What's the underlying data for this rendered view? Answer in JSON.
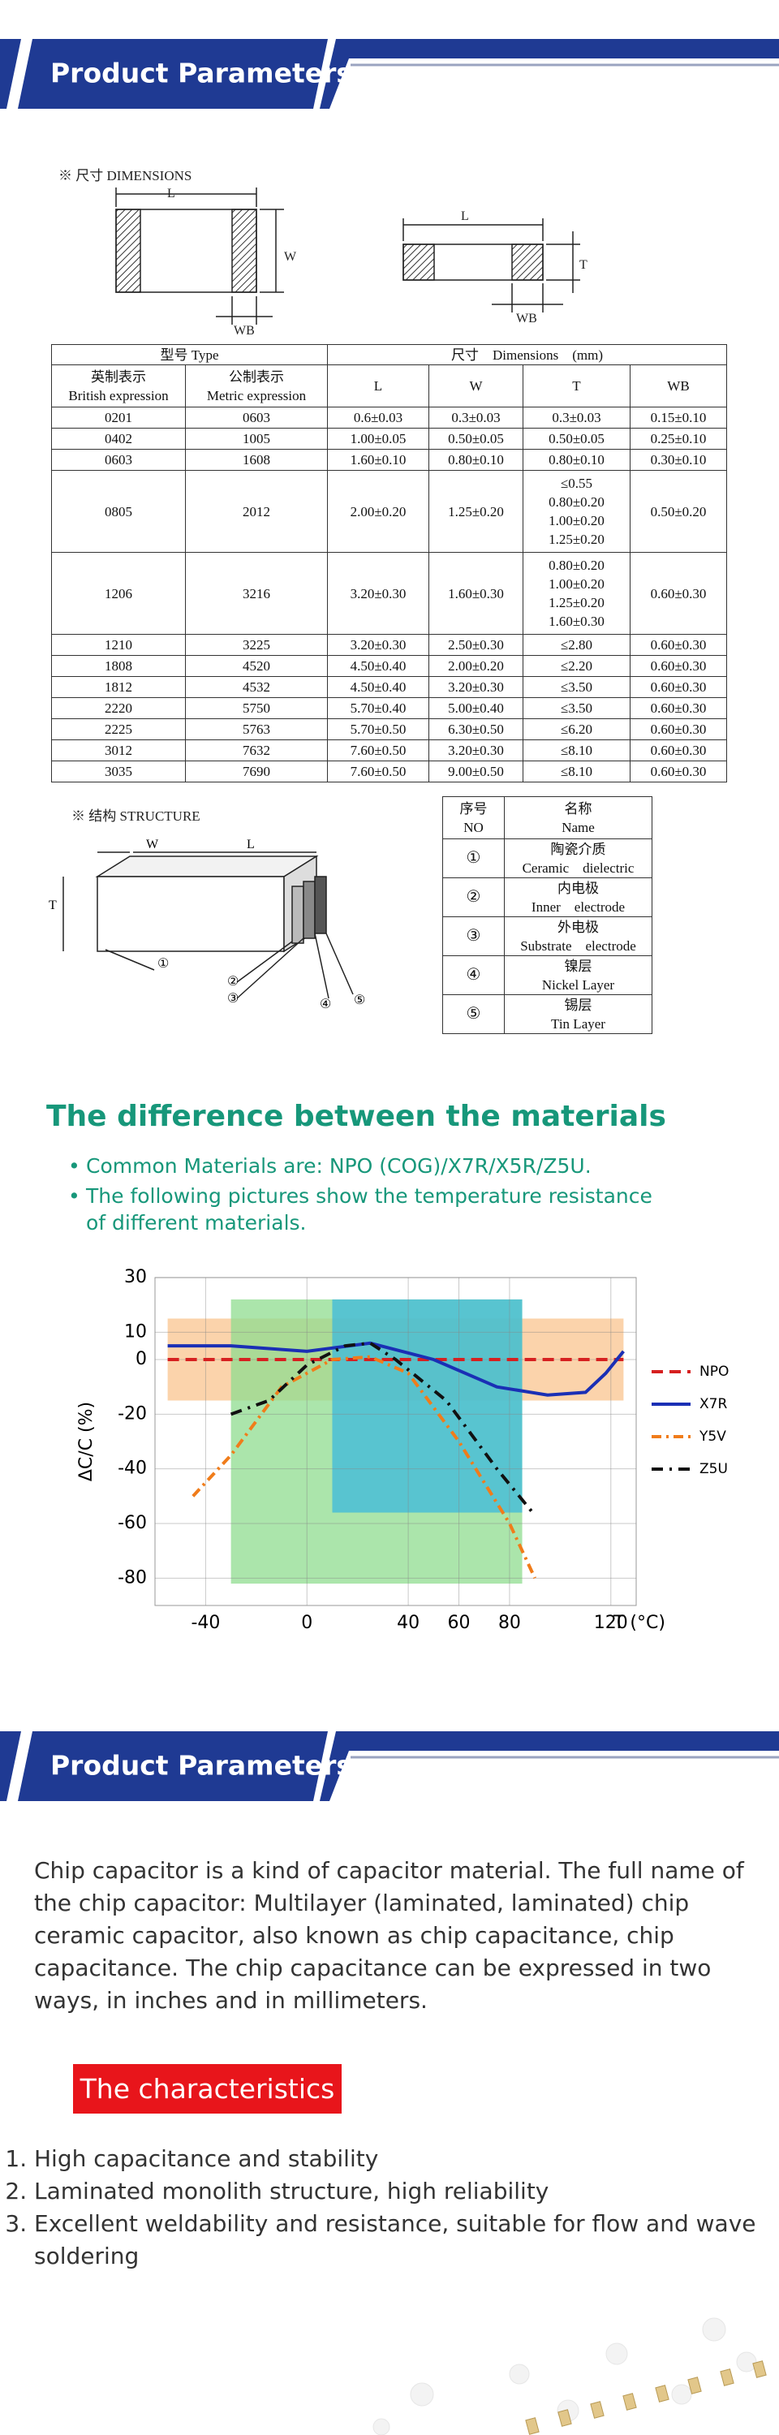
{
  "banner1": {
    "title": "Product Parameters"
  },
  "dimensions": {
    "heading": "※ 尺寸 DIMENSIONS",
    "fig1": {
      "L": "L",
      "W": "W",
      "WB": "WB"
    },
    "fig2": {
      "L": "L",
      "T": "T",
      "WB": "WB"
    }
  },
  "table": {
    "header": {
      "type": "型号 Type",
      "dims": "尺寸　Dimensions　(mm)",
      "british": [
        "英制表示",
        "British expression"
      ],
      "metric": [
        "公制表示",
        "Metric expression"
      ],
      "cols": [
        "L",
        "W",
        "T",
        "WB"
      ]
    },
    "rows": [
      [
        "0201",
        "0603",
        "0.6±0.03",
        "0.3±0.03",
        [
          "0.3±0.03"
        ],
        "0.15±0.10"
      ],
      [
        "0402",
        "1005",
        "1.00±0.05",
        "0.50±0.05",
        [
          "0.50±0.05"
        ],
        "0.25±0.10"
      ],
      [
        "0603",
        "1608",
        "1.60±0.10",
        "0.80±0.10",
        [
          "0.80±0.10"
        ],
        "0.30±0.10"
      ],
      [
        "0805",
        "2012",
        "2.00±0.20",
        "1.25±0.20",
        [
          "≤0.55",
          "0.80±0.20",
          "1.00±0.20",
          "1.25±0.20"
        ],
        "0.50±0.20"
      ],
      [
        "1206",
        "3216",
        "3.20±0.30",
        "1.60±0.30",
        [
          "0.80±0.20",
          "1.00±0.20",
          "1.25±0.20",
          "1.60±0.30"
        ],
        "0.60±0.30"
      ],
      [
        "1210",
        "3225",
        "3.20±0.30",
        "2.50±0.30",
        [
          "≤2.80"
        ],
        "0.60±0.30"
      ],
      [
        "1808",
        "4520",
        "4.50±0.40",
        "2.00±0.20",
        [
          "≤2.20"
        ],
        "0.60±0.30"
      ],
      [
        "1812",
        "4532",
        "4.50±0.40",
        "3.20±0.30",
        [
          "≤3.50"
        ],
        "0.60±0.30"
      ],
      [
        "2220",
        "5750",
        "5.70±0.40",
        "5.00±0.40",
        [
          "≤3.50"
        ],
        "0.60±0.30"
      ],
      [
        "2225",
        "5763",
        "5.70±0.50",
        "6.30±0.50",
        [
          "≤6.20"
        ],
        "0.60±0.30"
      ],
      [
        "3012",
        "7632",
        "7.60±0.50",
        "3.20±0.30",
        [
          "≤8.10"
        ],
        "0.60±0.30"
      ],
      [
        "3035",
        "7690",
        "7.60±0.50",
        "9.00±0.50",
        [
          "≤8.10"
        ],
        "0.60±0.30"
      ]
    ]
  },
  "structure": {
    "heading": "※ 结构 STRUCTURE",
    "labels": {
      "W": "W",
      "L": "L",
      "T": "T",
      "n1": "①",
      "n2": "②",
      "n3": "③",
      "n4": "④",
      "n5": "⑤"
    },
    "table": {
      "header": [
        [
          "序号",
          "NO"
        ],
        [
          "名称",
          "Name"
        ]
      ],
      "rows": [
        [
          "①",
          "陶瓷介质",
          "Ceramic　dielectric"
        ],
        [
          "②",
          "内电极",
          "Inner　electrode"
        ],
        [
          "③",
          "外电极",
          "Substrate　electrode"
        ],
        [
          "④",
          "镍层",
          "Nickel Layer"
        ],
        [
          "⑤",
          "锡层",
          "Tin Layer"
        ]
      ]
    }
  },
  "materials": {
    "title": "The difference between the materials",
    "bullets": [
      "Common Materials are: NPO (COG)/X7R/X5R/Z5U.",
      "The following pictures show the temperature resistance of different materials."
    ]
  },
  "chart_data": {
    "type": "line",
    "x_label": "T (°C)",
    "y_label": "ΔC/C (%)",
    "xlim": [
      -60,
      130
    ],
    "ylim": [
      -90,
      30
    ],
    "xticks": [
      -40,
      0,
      40,
      60,
      80,
      120
    ],
    "yticks": [
      30,
      10,
      0,
      -20,
      -40,
      -60,
      -80
    ],
    "grid": true,
    "regions": [
      {
        "color": "#f9c48f",
        "xlim": [
          -55,
          125
        ],
        "ylim": [
          -15,
          15
        ]
      },
      {
        "color": "#8fdc8f",
        "xlim": [
          -30,
          85
        ],
        "ylim": [
          -82,
          22
        ]
      },
      {
        "color": "#3cb8dc",
        "xlim": [
          10,
          85
        ],
        "ylim": [
          -56,
          22
        ]
      }
    ],
    "series": [
      {
        "name": "NPO",
        "color": "#d62020",
        "x": [
          -55,
          125
        ],
        "values": [
          0,
          0
        ]
      },
      {
        "name": "X7R",
        "color": "#1a2fb5",
        "x": [
          -55,
          -30,
          0,
          25,
          50,
          75,
          95,
          110,
          118,
          125
        ],
        "values": [
          5,
          5,
          3,
          6,
          0,
          -10,
          -13,
          -12,
          -5,
          3
        ]
      },
      {
        "name": "Y5V",
        "color": "#f07c1a",
        "x": [
          -45,
          -30,
          -10,
          10,
          25,
          40,
          60,
          80,
          90
        ],
        "values": [
          -50,
          -35,
          -10,
          0,
          1,
          -5,
          -30,
          -60,
          -80
        ]
      },
      {
        "name": "Z5U",
        "color": "#111111",
        "x": [
          -30,
          -15,
          0,
          15,
          25,
          35,
          55,
          75,
          90
        ],
        "values": [
          -20,
          -15,
          -2,
          5,
          6,
          0,
          -15,
          -40,
          -57
        ]
      }
    ]
  },
  "banner2": {
    "title": "Product Parameters"
  },
  "intro": "Chip capacitor is a kind of capacitor material. The full name of the chip capacitor: Multilayer (laminated, laminated) chip ceramic capacitor, also known as chip capacitance, chip capacitance. The chip capacitance can be expressed in two ways, in inches and in millimeters.",
  "characteristics": {
    "title": "The characteristics",
    "items": [
      "High capacitance and stability",
      "Laminated monolith structure, high reliability",
      "Excellent weldability and resistance, suitable for flow and wave soldering"
    ]
  }
}
